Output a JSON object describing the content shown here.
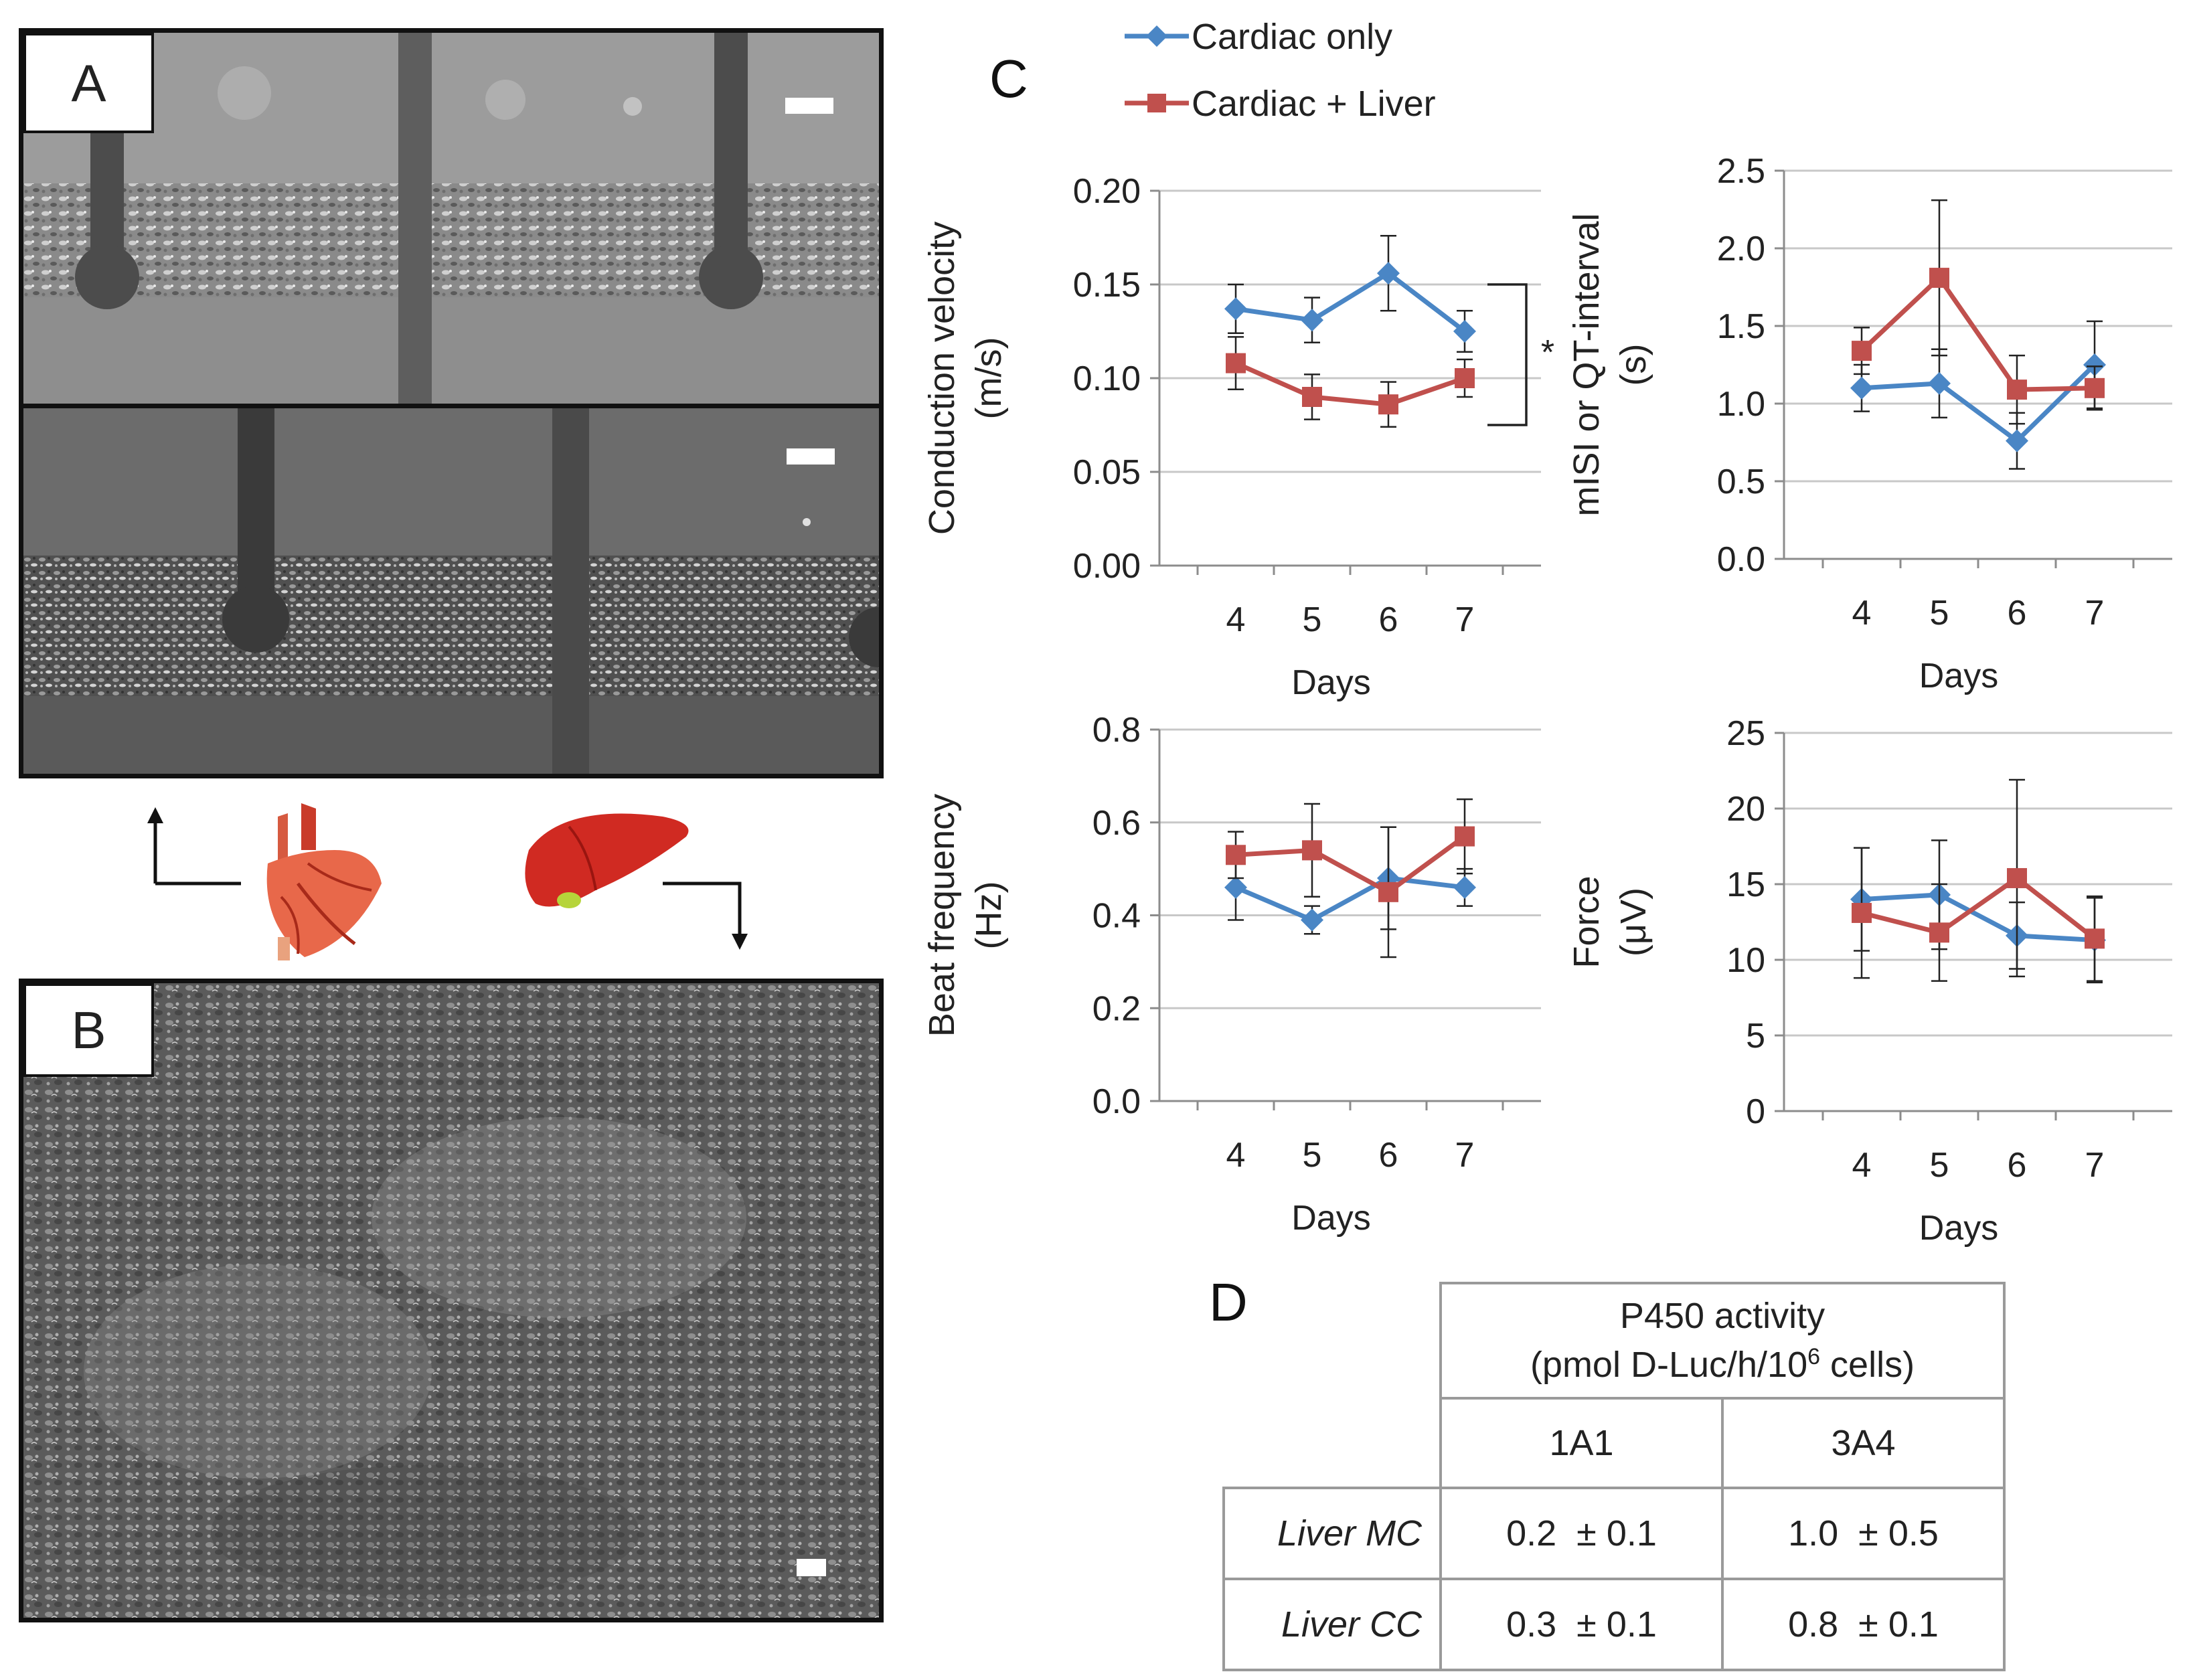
{
  "panels": {
    "a": "A",
    "b": "B",
    "c": "C",
    "d": "D"
  },
  "legend": [
    {
      "name": "Cardiac only",
      "color": "#4a86c5",
      "marker": "diamond"
    },
    {
      "name": "Cardiac + Liver",
      "color": "#c0504d",
      "marker": "square"
    }
  ],
  "chart_data": [
    {
      "type": "line",
      "ylabel_lines": [
        "Conduction velocity",
        "(m/s)"
      ],
      "xlabel": "Days",
      "categories": [
        "4",
        "5",
        "6",
        "7"
      ],
      "ylim": [
        0,
        0.2
      ],
      "yticks": [
        "0.00",
        "0.05",
        "0.10",
        "0.15",
        "0.20"
      ],
      "significance": "*",
      "series": [
        {
          "name": "Cardiac only",
          "values": [
            0.137,
            0.131,
            0.156,
            0.125
          ],
          "err": [
            0.013,
            0.012,
            0.02,
            0.011
          ]
        },
        {
          "name": "Cardiac + Liver",
          "values": [
            0.108,
            0.09,
            0.086,
            0.1
          ],
          "err": [
            0.014,
            0.012,
            0.012,
            0.01
          ]
        }
      ]
    },
    {
      "type": "line",
      "ylabel_lines": [
        "mISI  or QT-interval",
        "(s)"
      ],
      "xlabel": "Days",
      "categories": [
        "4",
        "5",
        "6",
        "7"
      ],
      "ylim": [
        0,
        2.5
      ],
      "yticks": [
        "0.0",
        "0.5",
        "1.0",
        "1.5",
        "2.0",
        "2.5"
      ],
      "series": [
        {
          "name": "Cardiac only",
          "values": [
            1.1,
            1.13,
            0.76,
            1.25
          ],
          "err": [
            0.15,
            0.22,
            0.18,
            0.28
          ]
        },
        {
          "name": "Cardiac + Liver",
          "values": [
            1.34,
            1.81,
            1.09,
            1.1
          ],
          "err": [
            0.15,
            0.5,
            0.22,
            0.14
          ]
        }
      ]
    },
    {
      "type": "line",
      "ylabel_lines": [
        "Beat frequency",
        "(Hz)"
      ],
      "xlabel": "Days",
      "categories": [
        "4",
        "5",
        "6",
        "7"
      ],
      "ylim": [
        0,
        0.8
      ],
      "yticks": [
        "0.0",
        "0.2",
        "0.4",
        "0.6",
        "0.8"
      ],
      "series": [
        {
          "name": "Cardiac only",
          "values": [
            0.46,
            0.39,
            0.48,
            0.46
          ],
          "err": [
            0.07,
            0.03,
            0.11,
            0.04
          ]
        },
        {
          "name": "Cardiac + Liver",
          "values": [
            0.53,
            0.54,
            0.45,
            0.57
          ],
          "err": [
            0.05,
            0.1,
            0.14,
            0.08
          ]
        }
      ]
    },
    {
      "type": "line",
      "ylabel_lines": [
        "Force",
        "(μV)"
      ],
      "xlabel": "Days",
      "categories": [
        "4",
        "5",
        "6",
        "7"
      ],
      "ylim": [
        0,
        25
      ],
      "yticks": [
        "0",
        "5",
        "10",
        "15",
        "20",
        "25"
      ],
      "series": [
        {
          "name": "Cardiac only",
          "values": [
            14,
            14.3,
            11.6,
            11.3
          ],
          "err": [
            3.4,
            3.6,
            2.2,
            2.8
          ]
        },
        {
          "name": "Cardiac + Liver",
          "values": [
            13.1,
            11.8,
            15.4,
            11.4
          ],
          "err": [
            4.3,
            3.2,
            6.5,
            2.8
          ]
        }
      ]
    }
  ],
  "table": {
    "header_line1": "P450 activity",
    "header_line2_pre": "(pmol D-Luc/h/10",
    "header_sup": "6",
    "header_line2_post": " cells)",
    "col1": "1A1",
    "col2": "3A4",
    "rows": [
      {
        "label": "Liver MC",
        "v1": "0.2  ± 0.1",
        "v2": "1.0  ± 0.5"
      },
      {
        "label": "Liver CC",
        "v1": "0.3  ± 0.1",
        "v2": "0.8  ± 0.1"
      }
    ]
  }
}
